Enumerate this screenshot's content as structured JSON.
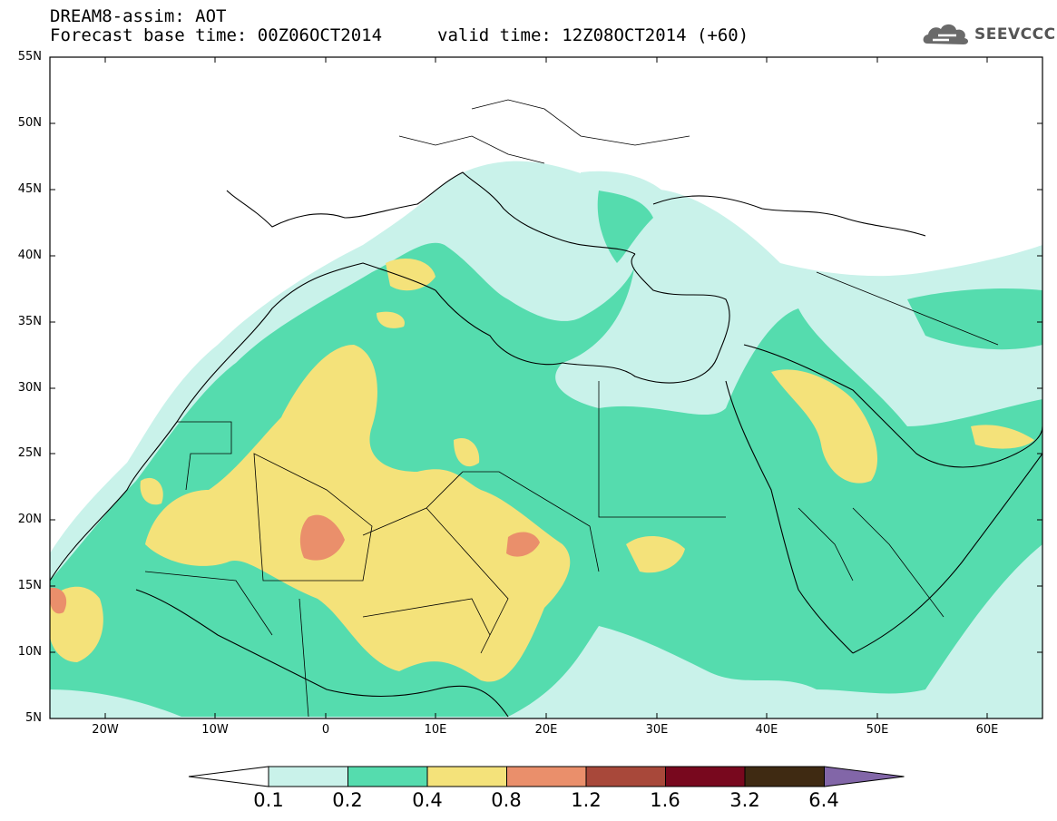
{
  "header": {
    "title": "DREAM8-assim: AOT",
    "base_time": "Forecast base time: 00Z06OCT2014",
    "valid_time": "valid time: 12Z08OCT2014 (+60)"
  },
  "logo": {
    "text": "SEEVCCC",
    "icon": "cloud-icon"
  },
  "map": {
    "lat_labels": [
      "55N",
      "50N",
      "45N",
      "40N",
      "35N",
      "30N",
      "25N",
      "20N",
      "15N",
      "10N",
      "5N"
    ],
    "lon_labels": [
      "20W",
      "10W",
      "0",
      "10E",
      "20E",
      "30E",
      "40E",
      "50E",
      "60E"
    ]
  },
  "colorbar": {
    "labels": [
      "0.1",
      "0.2",
      "0.4",
      "0.8",
      "1.2",
      "1.6",
      "3.2",
      "6.4"
    ],
    "colors": [
      "#ffffff",
      "#c9f2ea",
      "#55dcae",
      "#f4e27a",
      "#ea8f6b",
      "#a8483a",
      "#78081e",
      "#3f2a12",
      "#8266a8"
    ]
  }
}
